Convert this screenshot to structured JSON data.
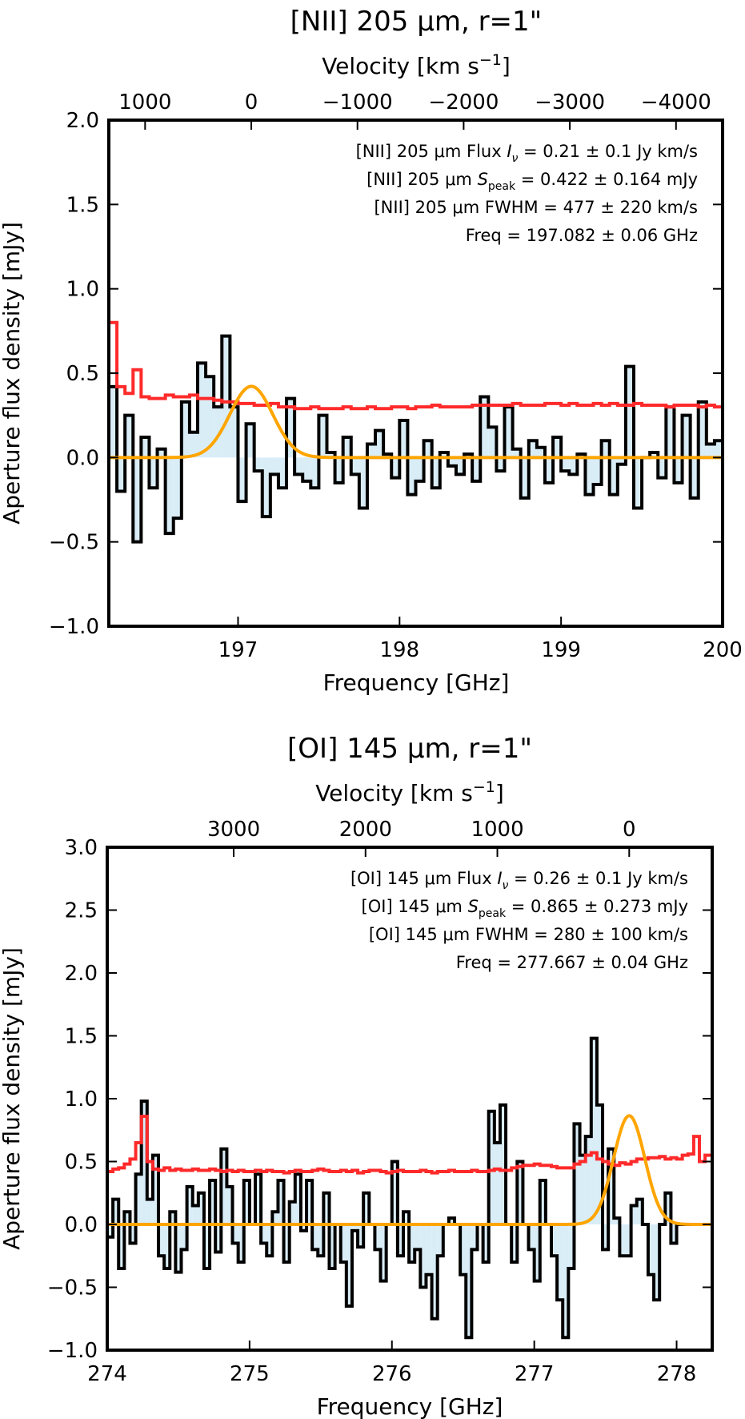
{
  "chart_data": [
    {
      "type": "line",
      "title": "[NII] 205 μm, r=1\"",
      "xlabel": "Frequency [GHz]",
      "ylabel": "Aperture flux density [mJy]",
      "top_xlabel": "Velocity [km s",
      "top_xlabel_sup": "−1",
      "top_xlabel_end": "]",
      "xlim": [
        196.2,
        200.0
      ],
      "ylim": [
        -1.0,
        2.0
      ],
      "xticks": [
        197,
        198,
        199,
        200
      ],
      "xtick_labels": [
        "197",
        "198",
        "199",
        "200"
      ],
      "yticks": [
        -1.0,
        -0.5,
        0.0,
        0.5,
        1.0,
        1.5,
        2.0
      ],
      "ytick_labels": [
        "−1.0",
        "−0.5",
        "0.0",
        "0.5",
        "1.0",
        "1.5",
        "2.0"
      ],
      "top_ticks": [
        1000,
        0,
        -1000,
        -2000,
        -3000,
        -4000
      ],
      "top_tick_labels": [
        "1000",
        "0",
        "−1000",
        "−2000",
        "−3000",
        "−4000"
      ],
      "rest_freq_ghz": 197.082,
      "annotations": [
        {
          "pre": "[NII] 205 μm Flux ",
          "sym": "I",
          "sub": "ν",
          "post": " = 0.21 ± 0.1 Jy km/s"
        },
        {
          "pre": "[NII] 205 μm ",
          "sym": "S",
          "sub": "peak",
          "post": " = 0.422 ± 0.164 mJy"
        },
        {
          "pre": "[NII] 205 μm FWHM = 477 ± 220 km/s",
          "sym": "",
          "sub": "",
          "post": ""
        },
        {
          "pre": "Freq = 197.082 ± 0.06 GHz",
          "sym": "",
          "sub": "",
          "post": ""
        }
      ],
      "series": [
        {
          "name": "spectrum",
          "kind": "step",
          "color": "#000000",
          "fill": "#d9edf7",
          "x": [
            196.2,
            196.25,
            196.3,
            196.35,
            196.4,
            196.45,
            196.5,
            196.55,
            196.6,
            196.65,
            196.7,
            196.75,
            196.8,
            196.85,
            196.9,
            196.95,
            197.0,
            197.05,
            197.1,
            197.15,
            197.2,
            197.25,
            197.3,
            197.35,
            197.4,
            197.45,
            197.5,
            197.55,
            197.6,
            197.65,
            197.7,
            197.75,
            197.8,
            197.85,
            197.9,
            197.95,
            198.0,
            198.05,
            198.1,
            198.15,
            198.2,
            198.25,
            198.3,
            198.35,
            198.4,
            198.45,
            198.5,
            198.55,
            198.6,
            198.65,
            198.7,
            198.75,
            198.8,
            198.85,
            198.9,
            198.95,
            199.0,
            199.05,
            199.1,
            199.15,
            199.2,
            199.25,
            199.3,
            199.35,
            199.4,
            199.45,
            199.5,
            199.55,
            199.6,
            199.65,
            199.7,
            199.75,
            199.8,
            199.85,
            199.9,
            199.95
          ],
          "values": [
            0.42,
            -0.2,
            0.25,
            -0.5,
            0.12,
            -0.18,
            0.05,
            -0.45,
            -0.36,
            0.33,
            0.15,
            0.56,
            0.48,
            0.3,
            0.72,
            0.3,
            -0.26,
            0.2,
            -0.08,
            -0.35,
            -0.1,
            -0.18,
            0.35,
            -0.1,
            -0.14,
            -0.18,
            0.25,
            0.03,
            -0.15,
            0.12,
            -0.1,
            -0.3,
            0.08,
            0.16,
            0.02,
            -0.12,
            0.22,
            -0.22,
            -0.14,
            0.1,
            -0.18,
            0.03,
            -0.05,
            -0.1,
            0.02,
            -0.14,
            0.36,
            0.18,
            -0.08,
            0.3,
            0.05,
            -0.24,
            0.1,
            0.06,
            -0.15,
            0.12,
            -0.08,
            -0.1,
            0.02,
            -0.22,
            -0.16,
            0.1,
            -0.22,
            -0.04,
            0.54,
            -0.3,
            0.0,
            0.03,
            -0.12,
            0.3,
            -0.15,
            0.25,
            -0.24,
            0.33,
            0.08,
            0.1
          ]
        },
        {
          "name": "noise",
          "kind": "step",
          "color": "#ff2a2a",
          "x": [
            196.2,
            196.25,
            196.3,
            196.35,
            196.4,
            196.45,
            196.5,
            196.55,
            196.6,
            196.65,
            196.7,
            196.75,
            196.8,
            196.85,
            196.9,
            196.95,
            197.0,
            197.05,
            197.1,
            197.15,
            197.2,
            197.25,
            197.3,
            197.35,
            197.4,
            197.45,
            197.5,
            197.55,
            197.6,
            197.65,
            197.7,
            197.75,
            197.8,
            197.85,
            197.9,
            197.95,
            198.0,
            198.05,
            198.1,
            198.15,
            198.2,
            198.25,
            198.3,
            198.35,
            198.4,
            198.45,
            198.5,
            198.55,
            198.6,
            198.65,
            198.7,
            198.75,
            198.8,
            198.85,
            198.9,
            198.95,
            199.0,
            199.05,
            199.1,
            199.15,
            199.2,
            199.25,
            199.3,
            199.35,
            199.4,
            199.45,
            199.5,
            199.55,
            199.6,
            199.65,
            199.7,
            199.75,
            199.8,
            199.85,
            199.9,
            199.95
          ],
          "values": [
            0.8,
            0.42,
            0.38,
            0.52,
            0.36,
            0.35,
            0.35,
            0.37,
            0.36,
            0.36,
            0.37,
            0.35,
            0.35,
            0.34,
            0.33,
            0.33,
            0.32,
            0.32,
            0.31,
            0.31,
            0.32,
            0.3,
            0.3,
            0.29,
            0.29,
            0.3,
            0.29,
            0.29,
            0.29,
            0.3,
            0.29,
            0.29,
            0.3,
            0.29,
            0.29,
            0.3,
            0.3,
            0.29,
            0.3,
            0.3,
            0.31,
            0.3,
            0.3,
            0.3,
            0.3,
            0.31,
            0.31,
            0.31,
            0.31,
            0.31,
            0.32,
            0.31,
            0.31,
            0.31,
            0.32,
            0.32,
            0.31,
            0.32,
            0.31,
            0.31,
            0.32,
            0.31,
            0.32,
            0.31,
            0.31,
            0.32,
            0.31,
            0.31,
            0.31,
            0.3,
            0.31,
            0.31,
            0.31,
            0.3,
            0.31,
            0.3
          ]
        },
        {
          "name": "gaussian fit",
          "kind": "gaussian",
          "color": "#ffa500",
          "amplitude": 0.422,
          "center": 197.082,
          "fwhm": 0.313,
          "xrange": [
            196.2,
            200.0
          ]
        }
      ]
    },
    {
      "type": "line",
      "title": "[OI] 145 μm, r=1\"",
      "xlabel": "Frequency [GHz]",
      "ylabel": "Aperture flux density [mJy]",
      "top_xlabel": "Velocity [km s",
      "top_xlabel_sup": "−1",
      "top_xlabel_end": "]",
      "xlim": [
        274.0,
        278.25
      ],
      "ylim": [
        -1.0,
        3.0
      ],
      "xticks": [
        274,
        275,
        276,
        277,
        278
      ],
      "xtick_labels": [
        "274",
        "275",
        "276",
        "277",
        "278"
      ],
      "yticks": [
        -1.0,
        -0.5,
        0.0,
        0.5,
        1.0,
        1.5,
        2.0,
        2.5,
        3.0
      ],
      "ytick_labels": [
        "−1.0",
        "−0.5",
        "0.0",
        "0.5",
        "1.0",
        "1.5",
        "2.0",
        "2.5",
        "3.0"
      ],
      "top_ticks": [
        3000,
        2000,
        1000,
        0
      ],
      "top_tick_labels": [
        "3000",
        "2000",
        "1000",
        "0"
      ],
      "rest_freq_ghz": 277.667,
      "annotations": [
        {
          "pre": "[OI] 145 μm Flux ",
          "sym": "I",
          "sub": "ν",
          "post": " = 0.26 ± 0.1 Jy km/s"
        },
        {
          "pre": "[OI] 145 μm ",
          "sym": "S",
          "sub": "peak",
          "post": " = 0.865 ± 0.273 mJy"
        },
        {
          "pre": "[OI] 145 μm FWHM = 280 ± 100 km/s",
          "sym": "",
          "sub": "",
          "post": ""
        },
        {
          "pre": "Freq = 277.667 ± 0.04 GHz",
          "sym": "",
          "sub": "",
          "post": ""
        }
      ],
      "series": [
        {
          "name": "spectrum",
          "kind": "step",
          "color": "#000000",
          "fill": "#d9edf7",
          "x": [
            274.0,
            274.04,
            274.08,
            274.12,
            274.16,
            274.2,
            274.24,
            274.28,
            274.32,
            274.36,
            274.4,
            274.44,
            274.48,
            274.52,
            274.56,
            274.6,
            274.64,
            274.68,
            274.72,
            274.76,
            274.8,
            274.84,
            274.88,
            274.92,
            274.96,
            275.0,
            275.04,
            275.08,
            275.12,
            275.16,
            275.2,
            275.24,
            275.28,
            275.32,
            275.36,
            275.4,
            275.44,
            275.48,
            275.52,
            275.56,
            275.6,
            275.64,
            275.68,
            275.72,
            275.76,
            275.8,
            275.84,
            275.88,
            275.92,
            275.96,
            276.0,
            276.04,
            276.08,
            276.12,
            276.16,
            276.2,
            276.24,
            276.28,
            276.32,
            276.36,
            276.4,
            276.44,
            276.48,
            276.52,
            276.56,
            276.6,
            276.64,
            276.68,
            276.72,
            276.76,
            276.8,
            276.84,
            276.88,
            276.92,
            276.96,
            277.0,
            277.04,
            277.08,
            277.12,
            277.16,
            277.2,
            277.24,
            277.28,
            277.32,
            277.36,
            277.4,
            277.44,
            277.48,
            277.52,
            277.56,
            277.6,
            277.64,
            277.68,
            277.72,
            277.76,
            277.8,
            277.84,
            277.88,
            277.92,
            277.96,
            278.0,
            278.04,
            278.08,
            278.12,
            278.16,
            278.2
          ],
          "values": [
            -0.1,
            0.2,
            -0.35,
            0.1,
            -0.15,
            0.4,
            0.98,
            0.2,
            0.55,
            -0.25,
            -0.35,
            0.1,
            -0.38,
            -0.2,
            0.3,
            0.15,
            0.25,
            -0.35,
            0.35,
            -0.22,
            0.6,
            0.3,
            -0.15,
            -0.3,
            0.35,
            0.0,
            0.4,
            -0.15,
            -0.25,
            0.1,
            0.35,
            -0.3,
            0.18,
            0.4,
            -0.05,
            0.35,
            -0.2,
            -0.25,
            0.25,
            -0.35,
            0.0,
            -0.3,
            -0.65,
            -0.05,
            -0.18,
            0.25,
            0.0,
            -0.2,
            -0.45,
            0.0,
            0.5,
            -0.25,
            0.1,
            -0.3,
            -0.2,
            -0.5,
            -0.4,
            -0.75,
            -0.25,
            0.0,
            0.05,
            0.0,
            -0.4,
            -0.9,
            -0.2,
            0.0,
            -0.3,
            0.9,
            0.65,
            0.95,
            0.0,
            -0.3,
            0.5,
            0.0,
            -0.2,
            -0.45,
            0.35,
            0.0,
            -0.25,
            -0.6,
            -0.9,
            -0.35,
            0.8,
            0.55,
            0.7,
            1.48,
            0.95,
            -0.2,
            0.6,
            0.05,
            -0.25,
            -0.25,
            0.15,
            0.2,
            0.0,
            -0.4,
            -0.6,
            0.0,
            0.25,
            -0.15,
            0.0,
            0.0,
            0.0,
            0.0,
            0.0,
            0.0
          ],
          "x_start": 274.0
        },
        {
          "name": "noise",
          "kind": "step",
          "color": "#ff2a2a",
          "x": [
            274.0,
            274.04,
            274.08,
            274.12,
            274.16,
            274.2,
            274.24,
            274.28,
            274.32,
            274.36,
            274.4,
            274.44,
            274.48,
            274.52,
            274.56,
            274.6,
            274.64,
            274.68,
            274.72,
            274.76,
            274.8,
            274.84,
            274.88,
            274.92,
            274.96,
            275.0,
            275.04,
            275.08,
            275.12,
            275.16,
            275.2,
            275.24,
            275.28,
            275.32,
            275.36,
            275.4,
            275.44,
            275.48,
            275.52,
            275.56,
            275.6,
            275.64,
            275.68,
            275.72,
            275.76,
            275.8,
            275.84,
            275.88,
            275.92,
            275.96,
            276.0,
            276.04,
            276.08,
            276.12,
            276.16,
            276.2,
            276.24,
            276.28,
            276.32,
            276.36,
            276.4,
            276.44,
            276.48,
            276.52,
            276.56,
            276.6,
            276.64,
            276.68,
            276.72,
            276.76,
            276.8,
            276.84,
            276.88,
            276.92,
            276.96,
            277.0,
            277.04,
            277.08,
            277.12,
            277.16,
            277.2,
            277.24,
            277.28,
            277.32,
            277.36,
            277.4,
            277.44,
            277.48,
            277.52,
            277.56,
            277.6,
            277.64,
            277.68,
            277.72,
            277.76,
            277.8,
            277.84,
            277.88,
            277.92,
            277.96,
            278.0,
            278.04,
            278.08,
            278.12,
            278.16,
            278.2
          ],
          "values": [
            0.42,
            0.44,
            0.45,
            0.48,
            0.52,
            0.65,
            0.86,
            0.5,
            0.44,
            0.43,
            0.45,
            0.43,
            0.44,
            0.43,
            0.43,
            0.44,
            0.43,
            0.43,
            0.44,
            0.43,
            0.42,
            0.43,
            0.42,
            0.43,
            0.42,
            0.42,
            0.43,
            0.42,
            0.43,
            0.42,
            0.42,
            0.41,
            0.42,
            0.43,
            0.42,
            0.42,
            0.43,
            0.44,
            0.43,
            0.42,
            0.42,
            0.43,
            0.42,
            0.43,
            0.41,
            0.42,
            0.43,
            0.43,
            0.42,
            0.41,
            0.42,
            0.43,
            0.42,
            0.42,
            0.42,
            0.43,
            0.42,
            0.41,
            0.42,
            0.42,
            0.43,
            0.42,
            0.42,
            0.42,
            0.43,
            0.42,
            0.42,
            0.43,
            0.44,
            0.43,
            0.43,
            0.45,
            0.46,
            0.47,
            0.47,
            0.48,
            0.47,
            0.47,
            0.46,
            0.45,
            0.45,
            0.45,
            0.48,
            0.5,
            0.55,
            0.57,
            0.52,
            0.5,
            0.48,
            0.47,
            0.49,
            0.48,
            0.5,
            0.52,
            0.52,
            0.53,
            0.53,
            0.54,
            0.52,
            0.53,
            0.52,
            0.55,
            0.56,
            0.7,
            0.5,
            0.55
          ]
        },
        {
          "name": "gaussian fit",
          "kind": "gaussian",
          "color": "#ffa500",
          "amplitude": 0.865,
          "center": 277.667,
          "fwhm": 0.259,
          "xrange": [
            274.0,
            278.25
          ]
        }
      ]
    }
  ]
}
